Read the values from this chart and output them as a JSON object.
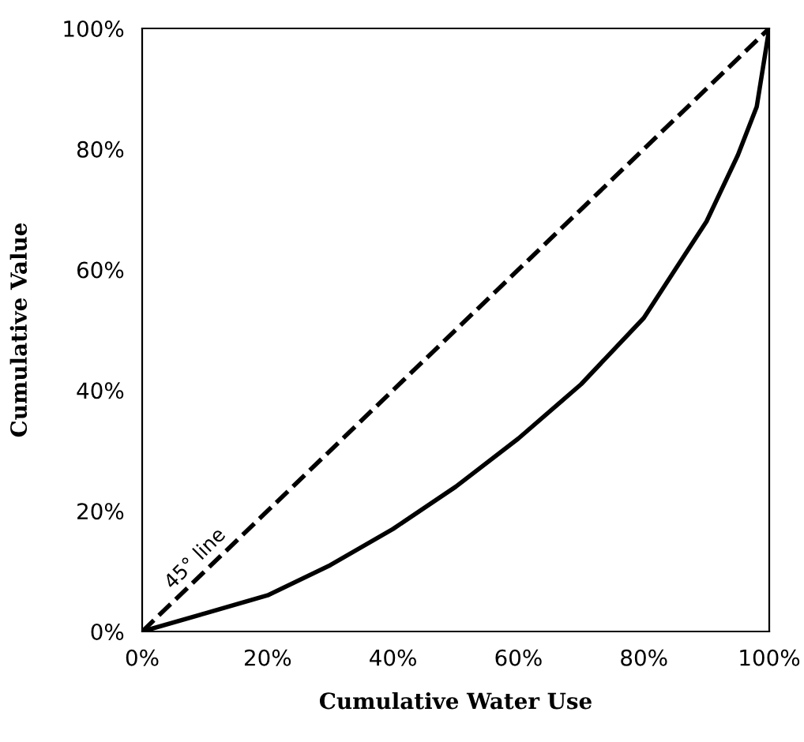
{
  "chart_data": {
    "type": "line",
    "xlabel": "Cumulative Water Use",
    "ylabel": "Cumulative Value",
    "xlim": [
      0,
      100
    ],
    "ylim": [
      0,
      100
    ],
    "xticks": [
      {
        "value": 0,
        "label": "0%"
      },
      {
        "value": 20,
        "label": "20%"
      },
      {
        "value": 40,
        "label": "40%"
      },
      {
        "value": 60,
        "label": "60%"
      },
      {
        "value": 80,
        "label": "80%"
      },
      {
        "value": 100,
        "label": "100%"
      }
    ],
    "yticks": [
      {
        "value": 0,
        "label": "0%"
      },
      {
        "value": 20,
        "label": "20%"
      },
      {
        "value": 40,
        "label": "40%"
      },
      {
        "value": 60,
        "label": "60%"
      },
      {
        "value": 80,
        "label": "80%"
      },
      {
        "value": 100,
        "label": "100%"
      }
    ],
    "grid": false,
    "legend": false,
    "marker": "none",
    "series": [
      {
        "color": "#000000",
        "line_style": "dashed",
        "x": [
          0,
          100
        ],
        "values": [
          0,
          100
        ]
      },
      {
        "color": "#000000",
        "line_style": "solid",
        "x": [
          0,
          10,
          20,
          30,
          40,
          50,
          60,
          70,
          80,
          85,
          90,
          95,
          98,
          100
        ],
        "values": [
          0,
          3,
          6,
          11,
          17,
          24,
          32,
          41,
          52,
          60,
          68,
          79,
          87,
          100
        ]
      }
    ],
    "annotations": [
      "45° line"
    ]
  }
}
